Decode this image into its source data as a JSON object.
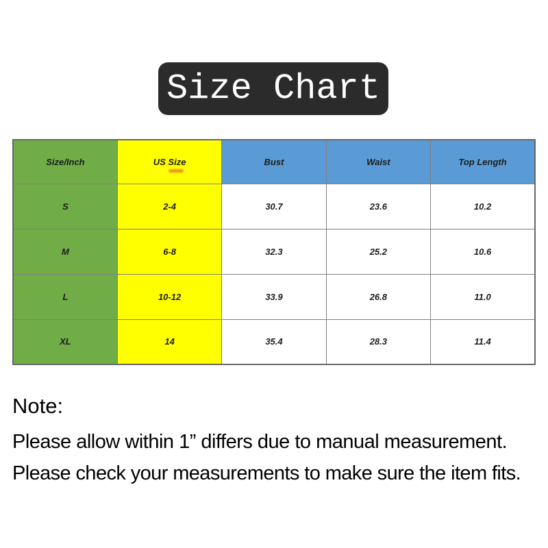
{
  "title_banner": {
    "label": "Size Chart",
    "bg_color": "#2b2b2b",
    "text_color": "#ffffff"
  },
  "size_table": {
    "headers": [
      {
        "label": "Size/Inch",
        "bg_color": "#70ad47"
      },
      {
        "label": "US Size",
        "bg_color": "#ffff00"
      },
      {
        "label": "Bust",
        "bg_color": "#5b9bd5"
      },
      {
        "label": "Waist",
        "bg_color": "#5b9bd5"
      },
      {
        "label": "Top Length",
        "bg_color": "#5b9bd5"
      }
    ],
    "rows": [
      {
        "cells": [
          "S",
          "2-4",
          "30.7",
          "23.6",
          "10.2"
        ]
      },
      {
        "cells": [
          "M",
          "6-8",
          "32.3",
          "25.2",
          "10.6"
        ]
      },
      {
        "cells": [
          "L",
          "10-12",
          "33.9",
          "26.8",
          "11.0"
        ]
      },
      {
        "cells": [
          "XL",
          "14",
          "35.4",
          "28.3",
          "11.4"
        ]
      }
    ],
    "border_color": "#7f7f7f",
    "size_column_bg": "#70ad47",
    "us_size_column_bg": "#ffff00"
  },
  "note": {
    "heading": "Note:",
    "lines": [
      "Please allow within 1” differs due to manual measurement.",
      "Please check your measurements to make sure the item fits."
    ]
  }
}
